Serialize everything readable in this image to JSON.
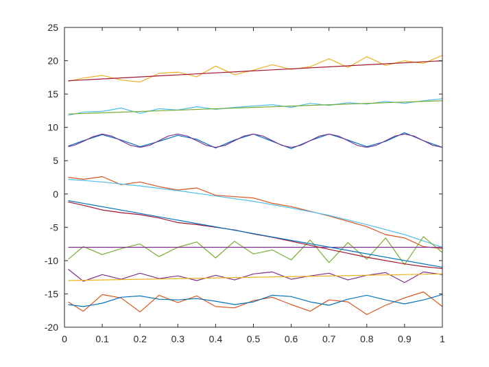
{
  "chart_data": {
    "type": "line",
    "title": "",
    "xlabel": "",
    "ylabel": "",
    "xlim": [
      0,
      1
    ],
    "ylim": [
      -20,
      25
    ],
    "grid": false,
    "box": true,
    "x_ticks": [
      0,
      0.1,
      0.2,
      0.3,
      0.4,
      0.5,
      0.6,
      0.7,
      0.8,
      0.9,
      1
    ],
    "x_tick_labels": [
      "0",
      "0.1",
      "0.2",
      "0.3",
      "0.4",
      "0.5",
      "0.6",
      "0.7",
      "0.8",
      "0.9",
      "1"
    ],
    "y_ticks": [
      -20,
      -15,
      -10,
      -5,
      0,
      5,
      10,
      15,
      20,
      25
    ],
    "y_tick_labels": [
      "-20",
      "-15",
      "-10",
      "-5",
      "0",
      "5",
      "10",
      "15",
      "20",
      "25"
    ],
    "series": [
      {
        "color": "#EDB120",
        "x": [
          0.01,
          0.05,
          0.1,
          0.15,
          0.2,
          0.25,
          0.3,
          0.35,
          0.4,
          0.45,
          0.5,
          0.55,
          0.6,
          0.65,
          0.7,
          0.75,
          0.8,
          0.85,
          0.9,
          0.95,
          1.0
        ],
        "y": [
          16.9,
          17.4,
          17.8,
          17.1,
          16.8,
          18.1,
          18.3,
          17.6,
          19.2,
          17.9,
          18.6,
          19.4,
          18.7,
          19.1,
          20.3,
          19.0,
          20.6,
          19.3,
          20.0,
          19.6,
          20.8
        ]
      },
      {
        "color": "#A2142F",
        "x": [
          0.01,
          1.0
        ],
        "y": [
          17.0,
          20.0
        ]
      },
      {
        "color": "#4DBEEE",
        "x": [
          0.01,
          0.05,
          0.1,
          0.15,
          0.2,
          0.25,
          0.3,
          0.35,
          0.4,
          0.45,
          0.5,
          0.55,
          0.6,
          0.65,
          0.7,
          0.75,
          0.8,
          0.85,
          0.9,
          0.95,
          1.0
        ],
        "y": [
          11.8,
          12.3,
          12.4,
          12.9,
          12.1,
          12.8,
          12.6,
          13.1,
          12.7,
          13.0,
          13.2,
          13.4,
          13.0,
          13.6,
          13.3,
          13.7,
          13.5,
          13.9,
          13.6,
          14.0,
          14.3
        ]
      },
      {
        "color": "#77AC30",
        "x": [
          0.01,
          1.0
        ],
        "y": [
          12.0,
          14.0
        ]
      },
      {
        "color": "#0072BD",
        "x": [
          0.01,
          0.05,
          0.1,
          0.15,
          0.2,
          0.25,
          0.3,
          0.35,
          0.4,
          0.45,
          0.5,
          0.55,
          0.6,
          0.65,
          0.7,
          0.75,
          0.8,
          0.85,
          0.9,
          0.95,
          1.0
        ],
        "y": [
          7.2,
          8.0,
          8.9,
          8.1,
          7.1,
          7.9,
          8.8,
          8.2,
          6.9,
          8.1,
          9.0,
          7.9,
          6.8,
          8.0,
          9.0,
          8.1,
          7.1,
          7.9,
          9.2,
          8.0,
          7.0
        ]
      },
      {
        "color": "#7E2F8E",
        "x": [
          0.01,
          0.025,
          0.05,
          0.075,
          0.1,
          0.125,
          0.15,
          0.175,
          0.2,
          0.225,
          0.25,
          0.275,
          0.3,
          0.325,
          0.35,
          0.375,
          0.4,
          0.425,
          0.45,
          0.475,
          0.5,
          0.525,
          0.55,
          0.575,
          0.6,
          0.625,
          0.65,
          0.675,
          0.7,
          0.725,
          0.75,
          0.775,
          0.8,
          0.825,
          0.85,
          0.875,
          0.9,
          0.925,
          0.95,
          0.975,
          1.0
        ],
        "y": [
          7.1,
          7.3,
          7.9,
          8.6,
          9.0,
          8.7,
          8.0,
          7.3,
          7.0,
          7.3,
          8.0,
          8.7,
          9.0,
          8.7,
          8.0,
          7.3,
          7.0,
          7.3,
          8.0,
          8.7,
          9.0,
          8.7,
          8.0,
          7.3,
          7.0,
          7.3,
          8.0,
          8.7,
          9.0,
          8.7,
          8.0,
          7.3,
          7.0,
          7.3,
          8.0,
          8.7,
          9.0,
          8.7,
          8.0,
          7.3,
          7.0
        ]
      },
      {
        "color": "#D95319",
        "x": [
          0.01,
          0.05,
          0.1,
          0.15,
          0.2,
          0.25,
          0.3,
          0.35,
          0.4,
          0.45,
          0.5,
          0.55,
          0.6,
          0.65,
          0.7,
          0.75,
          0.8,
          0.85,
          0.9,
          0.95,
          1.0
        ],
        "y": [
          2.5,
          2.2,
          2.6,
          1.4,
          1.8,
          1.1,
          0.6,
          0.9,
          -0.2,
          -0.4,
          -0.6,
          -1.4,
          -1.9,
          -2.6,
          -3.3,
          -4.1,
          -4.9,
          -6.1,
          -6.6,
          -7.9,
          -8.2
        ]
      },
      {
        "color": "#4DBEEE",
        "x": [
          0.01,
          0.1,
          0.2,
          0.3,
          0.4,
          0.5,
          0.6,
          0.7,
          0.8,
          0.9,
          1.0
        ],
        "y": [
          2.2,
          1.8,
          1.2,
          0.5,
          -0.3,
          -1.1,
          -2.1,
          -3.2,
          -4.6,
          -6.1,
          -8.0
        ]
      },
      {
        "color": "#77AC30",
        "x": [
          0.01,
          0.05,
          0.1,
          0.15,
          0.2,
          0.25,
          0.3,
          0.35,
          0.4,
          0.45,
          0.5,
          0.55,
          0.6,
          0.65,
          0.7,
          0.75,
          0.8,
          0.85,
          0.9,
          0.95,
          1.0
        ],
        "y": [
          -9.8,
          -7.9,
          -9.1,
          -8.2,
          -7.5,
          -9.4,
          -8.0,
          -7.2,
          -9.6,
          -7.1,
          -9.0,
          -8.4,
          -9.9,
          -6.9,
          -10.3,
          -7.3,
          -9.8,
          -6.6,
          -10.6,
          -6.4,
          -8.8
        ]
      },
      {
        "color": "#7E2F8E",
        "x": [
          0.01,
          1.0
        ],
        "y": [
          -8.0,
          -8.0
        ]
      },
      {
        "color": "#A2142F",
        "x": [
          0.01,
          0.05,
          0.1,
          0.15,
          0.2,
          0.25,
          0.3,
          0.35,
          0.4,
          0.45,
          0.5,
          0.55,
          0.6,
          0.65,
          0.7,
          0.75,
          0.8,
          0.85,
          0.9,
          0.95,
          1.0
        ],
        "y": [
          -1.2,
          -1.7,
          -2.4,
          -2.8,
          -3.1,
          -3.6,
          -4.3,
          -4.6,
          -5.0,
          -5.4,
          -6.0,
          -6.5,
          -7.1,
          -7.7,
          -8.3,
          -8.9,
          -9.5,
          -10.0,
          -10.5,
          -10.9,
          -11.2
        ]
      },
      {
        "color": "#0072BD",
        "x": [
          0.01,
          1.0
        ],
        "y": [
          -1.0,
          -11.0
        ]
      },
      {
        "color": "#7E2F8E",
        "x": [
          0.01,
          0.05,
          0.1,
          0.15,
          0.2,
          0.25,
          0.3,
          0.35,
          0.4,
          0.45,
          0.5,
          0.55,
          0.6,
          0.65,
          0.7,
          0.75,
          0.8,
          0.85,
          0.9,
          0.95,
          1.0
        ],
        "y": [
          -11.3,
          -13.1,
          -12.1,
          -12.8,
          -11.9,
          -12.7,
          -12.3,
          -13.0,
          -12.2,
          -12.9,
          -12.0,
          -11.7,
          -12.8,
          -12.3,
          -11.9,
          -12.9,
          -12.2,
          -11.8,
          -13.3,
          -11.7,
          -12.1
        ]
      },
      {
        "color": "#EDB120",
        "x": [
          0.01,
          1.0
        ],
        "y": [
          -13.0,
          -12.0
        ]
      },
      {
        "color": "#D95319",
        "x": [
          0.01,
          0.05,
          0.1,
          0.15,
          0.2,
          0.25,
          0.3,
          0.35,
          0.4,
          0.45,
          0.5,
          0.55,
          0.6,
          0.65,
          0.7,
          0.75,
          0.8,
          0.85,
          0.9,
          0.95,
          1.0
        ],
        "y": [
          -16.2,
          -17.6,
          -15.1,
          -15.6,
          -17.7,
          -15.2,
          -16.3,
          -15.3,
          -16.9,
          -17.1,
          -16.0,
          -15.5,
          -16.6,
          -17.6,
          -15.9,
          -16.2,
          -18.1,
          -16.7,
          -15.6,
          -14.7,
          -16.9
        ]
      },
      {
        "color": "#0072BD",
        "x": [
          0.01,
          0.05,
          0.1,
          0.15,
          0.2,
          0.25,
          0.3,
          0.35,
          0.4,
          0.45,
          0.5,
          0.55,
          0.6,
          0.65,
          0.7,
          0.75,
          0.8,
          0.85,
          0.9,
          0.95,
          1.0
        ],
        "y": [
          -16.6,
          -16.9,
          -16.4,
          -15.5,
          -15.3,
          -15.8,
          -15.9,
          -15.7,
          -16.1,
          -16.6,
          -16.2,
          -15.2,
          -15.4,
          -16.2,
          -16.7,
          -15.8,
          -15.2,
          -15.9,
          -16.5,
          -15.9,
          -15.1
        ]
      }
    ]
  }
}
